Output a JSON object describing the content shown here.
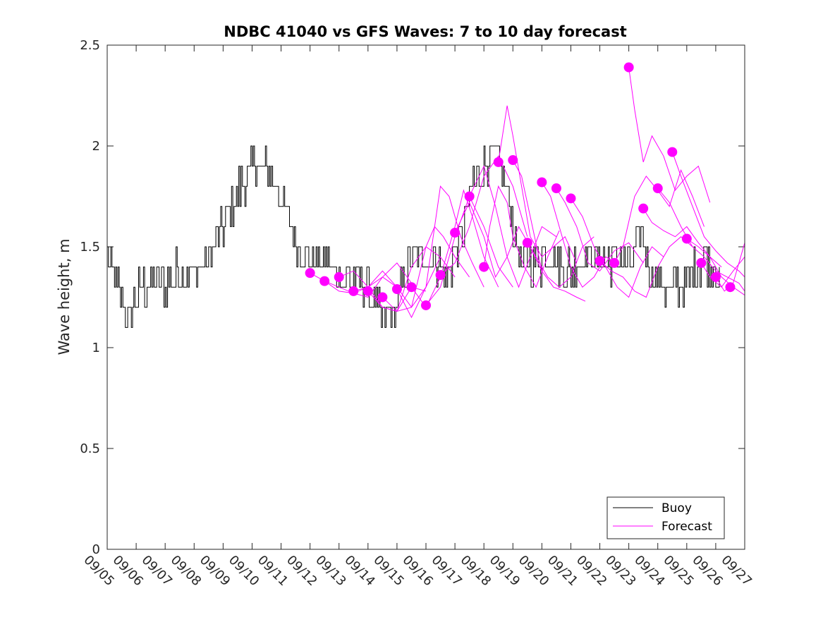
{
  "chart_data": {
    "type": "line",
    "title": "NDBC 41040 vs GFS Waves: 7 to 10 day forecast",
    "xlabel": "",
    "ylabel": "Wave height, m",
    "xlim": [
      0,
      22
    ],
    "ylim": [
      0,
      2.5
    ],
    "x_tick_labels": [
      "09/05",
      "09/06",
      "09/07",
      "09/08",
      "09/09",
      "09/10",
      "09/11",
      "09/12",
      "09/13",
      "09/14",
      "09/15",
      "09/16",
      "09/17",
      "09/18",
      "09/19",
      "09/20",
      "09/21",
      "09/22",
      "09/23",
      "09/24",
      "09/25",
      "09/26",
      "09/27"
    ],
    "y_ticks": [
      0,
      0.5,
      1,
      1.5,
      2,
      2.5
    ],
    "y_tick_labels": [
      "0",
      "0.5",
      "1",
      "1.5",
      "2",
      "2.5"
    ],
    "legend": {
      "position": "bottom-right",
      "entries": [
        "Buoy",
        "Forecast"
      ]
    },
    "colors": {
      "buoy": "#000000",
      "forecast": "#ff00ff"
    },
    "buoy_anchors": [
      [
        0.0,
        1.45
      ],
      [
        0.25,
        1.32
      ],
      [
        0.5,
        1.25
      ],
      [
        0.75,
        1.15
      ],
      [
        1.0,
        1.25
      ],
      [
        1.25,
        1.3
      ],
      [
        1.5,
        1.33
      ],
      [
        2.0,
        1.32
      ],
      [
        2.25,
        1.35
      ],
      [
        2.5,
        1.38
      ],
      [
        3.0,
        1.38
      ],
      [
        3.5,
        1.45
      ],
      [
        4.0,
        1.6
      ],
      [
        4.5,
        1.78
      ],
      [
        4.8,
        1.86
      ],
      [
        5.2,
        1.92
      ],
      [
        5.6,
        1.85
      ],
      [
        6.0,
        1.75
      ],
      [
        6.3,
        1.6
      ],
      [
        6.6,
        1.52
      ],
      [
        7.0,
        1.45
      ],
      [
        7.5,
        1.42
      ],
      [
        8.0,
        1.35
      ],
      [
        8.5,
        1.35
      ],
      [
        9.0,
        1.3
      ],
      [
        9.3,
        1.18
      ],
      [
        9.6,
        1.12
      ],
      [
        10.0,
        1.2
      ],
      [
        10.3,
        1.38
      ],
      [
        10.6,
        1.45
      ],
      [
        11.0,
        1.45
      ],
      [
        11.4,
        1.42
      ],
      [
        11.7,
        1.35
      ],
      [
        12.0,
        1.48
      ],
      [
        12.3,
        1.6
      ],
      [
        12.6,
        1.82
      ],
      [
        13.0,
        1.92
      ],
      [
        13.3,
        1.95
      ],
      [
        13.6,
        1.9
      ],
      [
        13.8,
        1.78
      ],
      [
        14.0,
        1.62
      ],
      [
        14.2,
        1.45
      ],
      [
        14.4,
        1.4
      ],
      [
        14.8,
        1.42
      ],
      [
        15.2,
        1.45
      ],
      [
        15.6,
        1.42
      ],
      [
        16.0,
        1.38
      ],
      [
        16.4,
        1.45
      ],
      [
        16.8,
        1.45
      ],
      [
        17.2,
        1.43
      ],
      [
        17.6,
        1.45
      ],
      [
        18.0,
        1.42
      ],
      [
        18.4,
        1.55
      ],
      [
        18.8,
        1.38
      ],
      [
        19.2,
        1.3
      ],
      [
        19.6,
        1.3
      ],
      [
        20.0,
        1.33
      ],
      [
        20.4,
        1.42
      ],
      [
        20.7,
        1.45
      ],
      [
        21.0,
        1.4
      ],
      [
        21.15,
        1.28
      ]
    ],
    "forecast_series": [
      {
        "name": "f1",
        "x": [
          7.0,
          7.5,
          8.0,
          8.5,
          9.0,
          9.5,
          10.0
        ],
        "y": [
          1.37,
          1.33,
          1.28,
          1.27,
          1.3,
          1.35,
          1.3
        ]
      },
      {
        "name": "f2",
        "x": [
          7.5,
          8.0,
          8.5,
          9.0,
          9.5,
          10.0,
          10.5
        ],
        "y": [
          1.33,
          1.3,
          1.27,
          1.25,
          1.35,
          1.42,
          1.32
        ]
      },
      {
        "name": "f3",
        "x": [
          8.0,
          8.5,
          9.0,
          9.5,
          10.0,
          10.5,
          11.0
        ],
        "y": [
          1.35,
          1.38,
          1.3,
          1.2,
          1.18,
          1.3,
          1.28
        ]
      },
      {
        "name": "f4",
        "x": [
          8.5,
          9.0,
          9.5,
          10.0,
          10.5,
          11.0,
          11.5
        ],
        "y": [
          1.28,
          1.3,
          1.38,
          1.3,
          1.2,
          1.3,
          1.45
        ]
      },
      {
        "name": "f5",
        "x": [
          9.0,
          9.5,
          10.0,
          10.5,
          11.0,
          11.5,
          12.0
        ],
        "y": [
          1.28,
          1.2,
          1.18,
          1.4,
          1.5,
          1.45,
          1.35
        ]
      },
      {
        "name": "f6",
        "x": [
          9.5,
          10.0,
          10.5,
          11.0,
          11.3,
          11.6,
          12.0,
          12.5
        ],
        "y": [
          1.25,
          1.18,
          1.2,
          1.5,
          1.6,
          1.55,
          1.45,
          1.35
        ]
      },
      {
        "name": "f7",
        "x": [
          10.0,
          10.5,
          11.0,
          11.3,
          11.5,
          11.8,
          12.2,
          12.6,
          13.0
        ],
        "y": [
          1.29,
          1.15,
          1.3,
          1.6,
          1.8,
          1.75,
          1.55,
          1.42,
          1.3
        ]
      },
      {
        "name": "f8",
        "x": [
          10.5,
          11.0,
          11.5,
          12.0,
          12.3,
          12.6,
          13.0,
          13.5
        ],
        "y": [
          1.3,
          1.2,
          1.35,
          1.6,
          1.78,
          1.65,
          1.45,
          1.3
        ]
      },
      {
        "name": "f9",
        "x": [
          11.0,
          11.5,
          12.0,
          12.5,
          13.0,
          13.5,
          14.0
        ],
        "y": [
          1.21,
          1.3,
          1.55,
          1.75,
          1.6,
          1.4,
          1.3
        ]
      },
      {
        "name": "f10",
        "x": [
          11.5,
          12.0,
          12.5,
          13.0,
          13.5,
          14.0,
          14.5
        ],
        "y": [
          1.36,
          1.42,
          1.6,
          1.85,
          1.95,
          1.8,
          1.55
        ]
      },
      {
        "name": "f11",
        "x": [
          12.0,
          12.5,
          13.0,
          13.4,
          13.8,
          14.2,
          14.6,
          15.0
        ],
        "y": [
          1.57,
          1.72,
          1.55,
          1.35,
          1.45,
          1.6,
          1.5,
          1.38
        ]
      },
      {
        "name": "f12",
        "x": [
          12.5,
          13.0,
          13.4,
          13.8,
          14.2,
          14.6,
          15.0,
          15.5
        ],
        "y": [
          1.75,
          1.9,
          1.7,
          1.45,
          1.3,
          1.45,
          1.6,
          1.55
        ]
      },
      {
        "name": "f13",
        "x": [
          13.0,
          13.2,
          13.5,
          13.8,
          14.0,
          14.4,
          14.8,
          15.2,
          15.6
        ],
        "y": [
          1.4,
          1.6,
          1.8,
          1.72,
          1.55,
          1.4,
          1.3,
          1.45,
          1.58
        ]
      },
      {
        "name": "f14",
        "x": [
          13.5,
          13.8,
          14.0,
          14.3,
          14.6,
          15.0,
          15.4,
          15.8,
          16.2
        ],
        "y": [
          1.92,
          2.2,
          2.05,
          1.8,
          1.55,
          1.45,
          1.5,
          1.55,
          1.42
        ]
      },
      {
        "name": "f15",
        "x": [
          14.0,
          14.3,
          14.6,
          15.0,
          15.4,
          15.8,
          16.2,
          16.5
        ],
        "y": [
          1.93,
          1.85,
          1.65,
          1.38,
          1.3,
          1.28,
          1.25,
          1.23
        ]
      },
      {
        "name": "f16",
        "x": [
          14.5,
          14.8,
          15.2,
          15.6,
          16.0,
          16.4,
          16.8
        ],
        "y": [
          1.52,
          1.45,
          1.35,
          1.3,
          1.35,
          1.5,
          1.55
        ]
      },
      {
        "name": "f17",
        "x": [
          15.0,
          15.3,
          15.6,
          16.0,
          16.4,
          16.8,
          17.2,
          17.6
        ],
        "y": [
          1.82,
          1.75,
          1.6,
          1.4,
          1.3,
          1.35,
          1.45,
          1.42
        ]
      },
      {
        "name": "f18",
        "x": [
          15.5,
          15.8,
          16.2,
          16.6,
          17.0,
          17.5,
          18.0,
          18.5
        ],
        "y": [
          1.79,
          1.72,
          1.6,
          1.42,
          1.38,
          1.48,
          1.52,
          1.42
        ]
      },
      {
        "name": "f19",
        "x": [
          16.0,
          16.4,
          16.8,
          17.2,
          17.6,
          18.0,
          18.4,
          18.8,
          19.2
        ],
        "y": [
          1.74,
          1.65,
          1.5,
          1.4,
          1.3,
          1.25,
          1.4,
          1.5,
          1.45
        ]
      },
      {
        "name": "f20",
        "x": [
          17.0,
          17.4,
          17.8,
          18.2,
          18.6,
          19.0,
          19.4,
          19.8,
          20.2
        ],
        "y": [
          1.43,
          1.38,
          1.35,
          1.28,
          1.25,
          1.4,
          1.5,
          1.55,
          1.5
        ]
      },
      {
        "name": "f21",
        "x": [
          17.5,
          17.8,
          18.2,
          18.6,
          19.0,
          19.4,
          19.8,
          20.2,
          20.6
        ],
        "y": [
          1.42,
          1.5,
          1.75,
          1.85,
          1.78,
          1.7,
          1.88,
          1.75,
          1.6
        ]
      },
      {
        "name": "f22",
        "x": [
          18.0,
          18.2,
          18.5,
          18.8,
          19.2,
          19.6,
          20.0,
          20.4,
          20.8
        ],
        "y": [
          2.39,
          2.18,
          1.92,
          2.05,
          1.95,
          1.78,
          1.85,
          1.9,
          1.72
        ]
      },
      {
        "name": "f23",
        "x": [
          18.5,
          18.8,
          19.2,
          19.6,
          20.0,
          20.4,
          20.8,
          21.2
        ],
        "y": [
          1.69,
          1.62,
          1.58,
          1.55,
          1.6,
          1.52,
          1.45,
          1.4
        ]
      },
      {
        "name": "f24",
        "x": [
          19.0,
          19.4,
          19.8,
          20.2,
          20.6,
          21.0,
          21.4,
          21.8,
          22.0
        ],
        "y": [
          1.79,
          1.72,
          1.6,
          1.5,
          1.45,
          1.38,
          1.35,
          1.32,
          1.28
        ]
      },
      {
        "name": "f25",
        "x": [
          19.5,
          19.8,
          20.2,
          20.6,
          21.0,
          21.4,
          21.8,
          22.0
        ],
        "y": [
          1.97,
          1.85,
          1.7,
          1.55,
          1.48,
          1.42,
          1.38,
          1.35
        ]
      },
      {
        "name": "f26",
        "x": [
          20.0,
          20.4,
          20.8,
          21.2,
          21.6,
          22.0
        ],
        "y": [
          1.54,
          1.5,
          1.45,
          1.35,
          1.3,
          1.26
        ]
      },
      {
        "name": "f27",
        "x": [
          20.5,
          20.8,
          21.2,
          21.6,
          22.0
        ],
        "y": [
          1.42,
          1.35,
          1.3,
          1.38,
          1.45
        ]
      },
      {
        "name": "f28",
        "x": [
          21.0,
          21.3,
          21.6,
          22.0
        ],
        "y": [
          1.35,
          1.28,
          1.32,
          1.52
        ]
      }
    ],
    "forecast_markers": {
      "x": [
        7.0,
        7.5,
        8.0,
        8.5,
        9.0,
        9.5,
        10.0,
        10.5,
        11.0,
        11.5,
        12.0,
        12.5,
        13.0,
        13.5,
        14.0,
        14.5,
        15.0,
        15.5,
        16.0,
        17.0,
        17.5,
        18.0,
        18.5,
        19.0,
        19.5,
        20.0,
        20.5,
        21.0,
        21.5
      ],
      "y": [
        1.37,
        1.33,
        1.35,
        1.28,
        1.28,
        1.25,
        1.29,
        1.3,
        1.21,
        1.36,
        1.57,
        1.75,
        1.4,
        1.92,
        1.93,
        1.52,
        1.82,
        1.79,
        1.74,
        1.43,
        1.42,
        2.39,
        1.69,
        1.79,
        1.97,
        1.54,
        1.42,
        1.35,
        1.3
      ]
    }
  }
}
